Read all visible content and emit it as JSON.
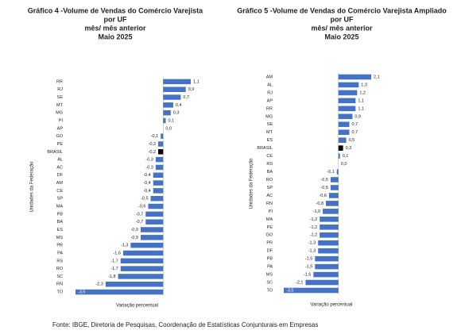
{
  "chart_data": [
    {
      "type": "hbar",
      "title_lines": [
        "Gráfico 4 -Volume de Vendas do Comércio Varejista",
        "por UF",
        "mês/ mês anterior",
        "Maio 2025"
      ],
      "y_label": "Unidades da Federação",
      "x_label": "Variação percentual",
      "categories": [
        "RR",
        "RJ",
        "SE",
        "MT",
        "MG",
        "PI",
        "AP",
        "GO",
        "PE",
        "BRASIL",
        "AL",
        "AC",
        "DF",
        "AM",
        "CE",
        "SP",
        "MA",
        "PB",
        "BA",
        "ES",
        "MS",
        "PR",
        "PA",
        "RS",
        "RO",
        "SC",
        "RN",
        "TO"
      ],
      "values": [
        1.1,
        0.9,
        0.7,
        0.4,
        0.3,
        0.1,
        0,
        -0.1,
        -0.2,
        -0.2,
        -0.3,
        -0.3,
        -0.4,
        -0.4,
        -0.4,
        -0.5,
        -0.6,
        -0.7,
        -0.7,
        -0.9,
        -0.9,
        -1.3,
        -1.6,
        -1.7,
        -1.7,
        -1.8,
        -2.3,
        -3.5
      ],
      "value_labels": [
        "1,1",
        "0,9",
        "0,7",
        "0,4",
        "0,3",
        "0,1",
        "0,0",
        "-0,1",
        "-0,2",
        "-0,2",
        "-0,3",
        "-0,3",
        "-0,4",
        "-0,4",
        "-0,4",
        "-0,5",
        "-0,6",
        "-0,7",
        "-0,7",
        "-0,9",
        "-0,9",
        "-1,3",
        "-1,6",
        "-1,7",
        "-1,7",
        "-1,8",
        "-2,3",
        "-3,5"
      ],
      "colors": [
        "#4472c4",
        "#4472c4",
        "#4472c4",
        "#4472c4",
        "#4472c4",
        "#4472c4",
        "#4472c4",
        "#4472c4",
        "#4472c4",
        "#000000",
        "#4472c4",
        "#4472c4",
        "#4472c4",
        "#4472c4",
        "#4472c4",
        "#4472c4",
        "#4472c4",
        "#4472c4",
        "#4472c4",
        "#4472c4",
        "#4472c4",
        "#4472c4",
        "#4472c4",
        "#4472c4",
        "#4472c4",
        "#4472c4",
        "#4472c4",
        "#4472c4"
      ],
      "xlim": [
        -3.5,
        1.1
      ]
    },
    {
      "type": "hbar",
      "title_lines": [
        "Gráfico 5 -Volume de Vendas do Comércio Varejista Ampliado",
        "por UF",
        "mês/ mês anterior",
        "Maio 2025"
      ],
      "y_label": "Unidades da Federação",
      "x_label": "Variação percentual",
      "categories": [
        "AM",
        "AL",
        "RJ",
        "AP",
        "RR",
        "MG",
        "SE",
        "MT",
        "ES",
        "BRASIL",
        "CE",
        "RS",
        "BA",
        "RO",
        "SP",
        "AC",
        "RN",
        "PI",
        "MA",
        "PE",
        "GO",
        "PR",
        "DF",
        "PB",
        "PA",
        "MS",
        "SC",
        "TO"
      ],
      "values": [
        2.1,
        1.3,
        1.2,
        1.1,
        1.1,
        0.9,
        0.7,
        0.7,
        0.5,
        0.3,
        0.1,
        0,
        -0.1,
        -0.5,
        -0.5,
        -0.6,
        -0.8,
        -1,
        -1.2,
        -1.2,
        -1.2,
        -1.3,
        -1.3,
        -1.5,
        -1.5,
        -1.6,
        -2.1,
        -3.5
      ],
      "value_labels": [
        "2,1",
        "1,3",
        "1,2",
        "1,1",
        "1,1",
        "0,9",
        "0,7",
        "0,7",
        "0,5",
        "0,3",
        "0,1",
        "0,0",
        "-0,1",
        "-0,5",
        "-0,5",
        "-0,6",
        "-0,8",
        "-1,0",
        "-1,2",
        "-1,2",
        "-1,2",
        "-1,3",
        "-1,3",
        "-1,5",
        "-1,5",
        "-1,6",
        "-2,1",
        "-3,5"
      ],
      "colors": [
        "#4472c4",
        "#4472c4",
        "#4472c4",
        "#4472c4",
        "#4472c4",
        "#4472c4",
        "#4472c4",
        "#4472c4",
        "#4472c4",
        "#000000",
        "#4472c4",
        "#4472c4",
        "#4472c4",
        "#4472c4",
        "#4472c4",
        "#4472c4",
        "#4472c4",
        "#4472c4",
        "#4472c4",
        "#4472c4",
        "#4472c4",
        "#4472c4",
        "#4472c4",
        "#4472c4",
        "#4472c4",
        "#4472c4",
        "#4472c4",
        "#4472c4"
      ],
      "xlim": [
        -3.5,
        2.1
      ]
    }
  ],
  "footer": "Fonte: IBGE, Diretoria de Pesquisas, Coordenação de Estatísticas Conjunturais em Empresas"
}
